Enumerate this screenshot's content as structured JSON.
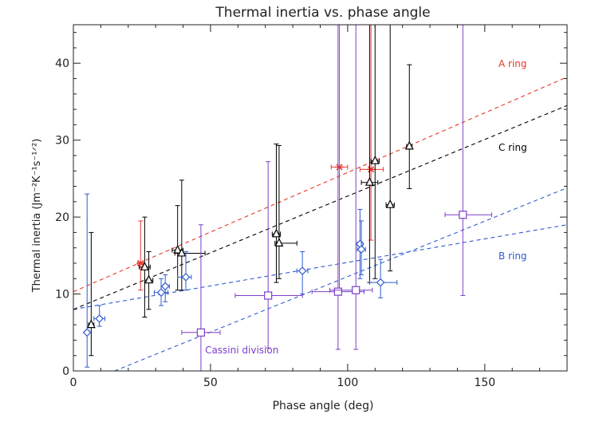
{
  "chart_data": {
    "type": "scatter",
    "title": "Thermal inertia vs. phase angle",
    "xlabel": "Phase angle (deg)",
    "ylabel": "Thermal inertia (Jm⁻²K⁻¹s⁻¹ᐟ²)",
    "xlim": [
      0,
      180
    ],
    "ylim": [
      0,
      45
    ],
    "xticks": [
      0,
      50,
      100,
      150
    ],
    "yticks": [
      0,
      10,
      20,
      30,
      40
    ],
    "minor_x_step": 10,
    "minor_y_step": 2,
    "grid": false,
    "series": [
      {
        "name": "A ring",
        "marker": "asterisk",
        "color": "#e8372c",
        "points": [
          {
            "x": 24.5,
            "y": 14.0,
            "xerr": [
              1.0,
              1.0
            ],
            "yerr": [
              10.5,
              19.5
            ]
          },
          {
            "x": 97.0,
            "y": 26.5,
            "xerr": [
              3.0,
              3.0
            ],
            "yerr": [
              10.0,
              45.0
            ]
          },
          {
            "x": 108.5,
            "y": 26.2,
            "xerr": [
              4.0,
              4.5
            ],
            "yerr": [
              17.0,
              45.0
            ]
          }
        ],
        "fit": {
          "x": [
            0,
            180
          ],
          "y": [
            10.3,
            38.2
          ]
        }
      },
      {
        "name": "C ring",
        "marker": "triangle",
        "color": "#000000",
        "points": [
          {
            "x": 6.5,
            "y": 6.0,
            "xerr": [
              1.0,
              1.0
            ],
            "yerr": [
              2.0,
              18.0
            ]
          },
          {
            "x": 26.0,
            "y": 13.5,
            "xerr": [
              2.0,
              2.0
            ],
            "yerr": [
              7.0,
              20.0
            ]
          },
          {
            "x": 27.5,
            "y": 11.8,
            "xerr": [
              1.5,
              1.5
            ],
            "yerr": [
              8.0,
              15.5
            ]
          },
          {
            "x": 38.0,
            "y": 15.7,
            "xerr": [
              2.0,
              2.0
            ],
            "yerr": [
              10.5,
              21.5
            ]
          },
          {
            "x": 39.5,
            "y": 15.3,
            "xerr": [
              2.5,
              8.5
            ],
            "yerr": [
              10.5,
              24.8
            ]
          },
          {
            "x": 74.0,
            "y": 17.8,
            "xerr": [
              1.5,
              1.5
            ],
            "yerr": [
              11.5,
              29.5
            ]
          },
          {
            "x": 75.0,
            "y": 16.6,
            "xerr": [
              1.5,
              6.5
            ],
            "yerr": [
              12.0,
              29.3
            ]
          },
          {
            "x": 108.0,
            "y": 24.5,
            "xerr": [
              3.0,
              3.0
            ],
            "yerr": [
              11.5,
              45.0
            ]
          },
          {
            "x": 110.0,
            "y": 27.3,
            "xerr": [
              1.5,
              1.5
            ],
            "yerr": [
              12.0,
              45.0
            ]
          },
          {
            "x": 115.5,
            "y": 21.6,
            "xerr": [
              1.5,
              1.5
            ],
            "yerr": [
              13.0,
              45.0
            ]
          },
          {
            "x": 122.5,
            "y": 29.2,
            "xerr": [
              1.0,
              1.0
            ],
            "yerr": [
              23.7,
              39.8
            ]
          }
        ],
        "fit": {
          "x": [
            0,
            180
          ],
          "y": [
            8.0,
            34.5
          ]
        }
      },
      {
        "name": "B ring",
        "marker": "diamond",
        "color": "#2f5bd0",
        "points": [
          {
            "x": 5.0,
            "y": 5.0,
            "xerr": [
              0.5,
              0.5
            ],
            "yerr": [
              0.5,
              23.0
            ]
          },
          {
            "x": 9.5,
            "y": 6.8,
            "xerr": [
              2.0,
              2.0
            ],
            "yerr": [
              5.8,
              8.5
            ]
          },
          {
            "x": 32.0,
            "y": 10.2,
            "xerr": [
              2.5,
              2.5
            ],
            "yerr": [
              8.5,
              12.0
            ]
          },
          {
            "x": 33.5,
            "y": 11.0,
            "xerr": [
              1.5,
              1.5
            ],
            "yerr": [
              9.0,
              12.5
            ]
          },
          {
            "x": 41.0,
            "y": 12.2,
            "xerr": [
              3.0,
              2.0
            ],
            "yerr": [
              10.5,
              15.5
            ]
          },
          {
            "x": 83.5,
            "y": 13.0,
            "xerr": [
              2.0,
              2.0
            ],
            "yerr": [
              10.0,
              15.5
            ]
          },
          {
            "x": 104.5,
            "y": 16.5,
            "xerr": [
              1.0,
              1.0
            ],
            "yerr": [
              12.0,
              21.0
            ]
          },
          {
            "x": 105.0,
            "y": 15.8,
            "xerr": [
              1.5,
              1.5
            ],
            "yerr": [
              12.5,
              19.5
            ]
          },
          {
            "x": 112.0,
            "y": 11.5,
            "xerr": [
              4.0,
              6.0
            ],
            "yerr": [
              9.5,
              14.5
            ]
          }
        ],
        "fit": {
          "x": [
            0,
            180
          ],
          "y": [
            8.0,
            19.0
          ]
        },
        "fit2": {
          "x": [
            15,
            180
          ],
          "y": [
            0,
            23.8
          ]
        }
      },
      {
        "name": "Cassini division",
        "marker": "square",
        "color": "#7d3fc9",
        "points": [
          {
            "x": 46.5,
            "y": 5.0,
            "xerr": [
              7.0,
              7.0
            ],
            "yerr": [
              0.0,
              19.0
            ]
          },
          {
            "x": 71.0,
            "y": 9.8,
            "xerr": [
              12.0,
              12.5
            ],
            "yerr": [
              3.0,
              27.2
            ]
          },
          {
            "x": 96.5,
            "y": 10.3,
            "xerr": [
              9.5,
              9.5
            ],
            "yerr": [
              2.8,
              45.0
            ]
          },
          {
            "x": 103.0,
            "y": 10.5,
            "xerr": [
              9.5,
              6.0
            ],
            "yerr": [
              2.8,
              45.0
            ]
          },
          {
            "x": 142.0,
            "y": 20.3,
            "xerr": [
              6.5,
              10.5
            ],
            "yerr": [
              9.8,
              45.0
            ]
          }
        ]
      }
    ],
    "annotations": [
      {
        "text": "A ring",
        "x": 155,
        "y": 39.5,
        "color": "#e8372c"
      },
      {
        "text": "C ring",
        "x": 155,
        "y": 28.6,
        "color": "#000000"
      },
      {
        "text": "B ring",
        "x": 155,
        "y": 14.5,
        "color": "#2f5bd0"
      },
      {
        "text": "Cassini division",
        "x": 48,
        "y": 2.3,
        "color": "#7d3fc9"
      }
    ]
  }
}
